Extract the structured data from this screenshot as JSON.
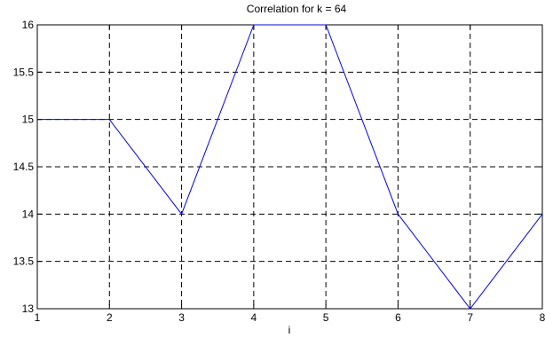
{
  "chart_data": {
    "type": "line",
    "title": "Correlation for k = 64",
    "xlabel": "i",
    "ylabel": "",
    "x": [
      1,
      2,
      3,
      4,
      5,
      6,
      7,
      8
    ],
    "series": [
      {
        "values": [
          15,
          15,
          14,
          16,
          16,
          14,
          13,
          14
        ]
      }
    ],
    "xlim": [
      1,
      8
    ],
    "ylim": [
      13,
      16
    ],
    "xticks": [
      "1",
      "2",
      "3",
      "4",
      "5",
      "6",
      "7",
      "8"
    ],
    "yticks": [
      "13",
      "13.5",
      "14",
      "14.5",
      "15",
      "15.5",
      "16"
    ],
    "grid": true,
    "line_color": "#0000ff"
  }
}
